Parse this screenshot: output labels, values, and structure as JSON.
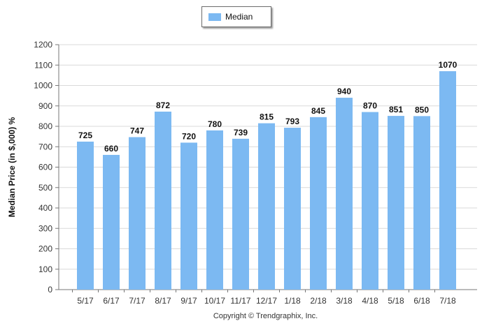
{
  "chart_data": {
    "type": "bar",
    "categories": [
      "5/17",
      "6/17",
      "7/17",
      "8/17",
      "9/17",
      "10/17",
      "11/17",
      "12/17",
      "1/18",
      "2/18",
      "3/18",
      "4/18",
      "5/18",
      "6/18",
      "7/18"
    ],
    "series": [
      {
        "name": "Median",
        "values": [
          725,
          660,
          747,
          872,
          720,
          780,
          739,
          815,
          793,
          845,
          940,
          870,
          851,
          850,
          1070
        ]
      }
    ],
    "ylabel": "Median Price (in $,000) %",
    "xlabel": "",
    "ylim": [
      0,
      1200
    ],
    "yticks": [
      0,
      100,
      200,
      300,
      400,
      500,
      600,
      700,
      800,
      900,
      1000,
      1100,
      1200
    ],
    "grid": true,
    "legend_position": "top-center",
    "bar_color": "#7cb9f2"
  },
  "legend": {
    "label": "Median"
  },
  "footer": {
    "copyright": "Copyright © Trendgraphix, Inc."
  }
}
